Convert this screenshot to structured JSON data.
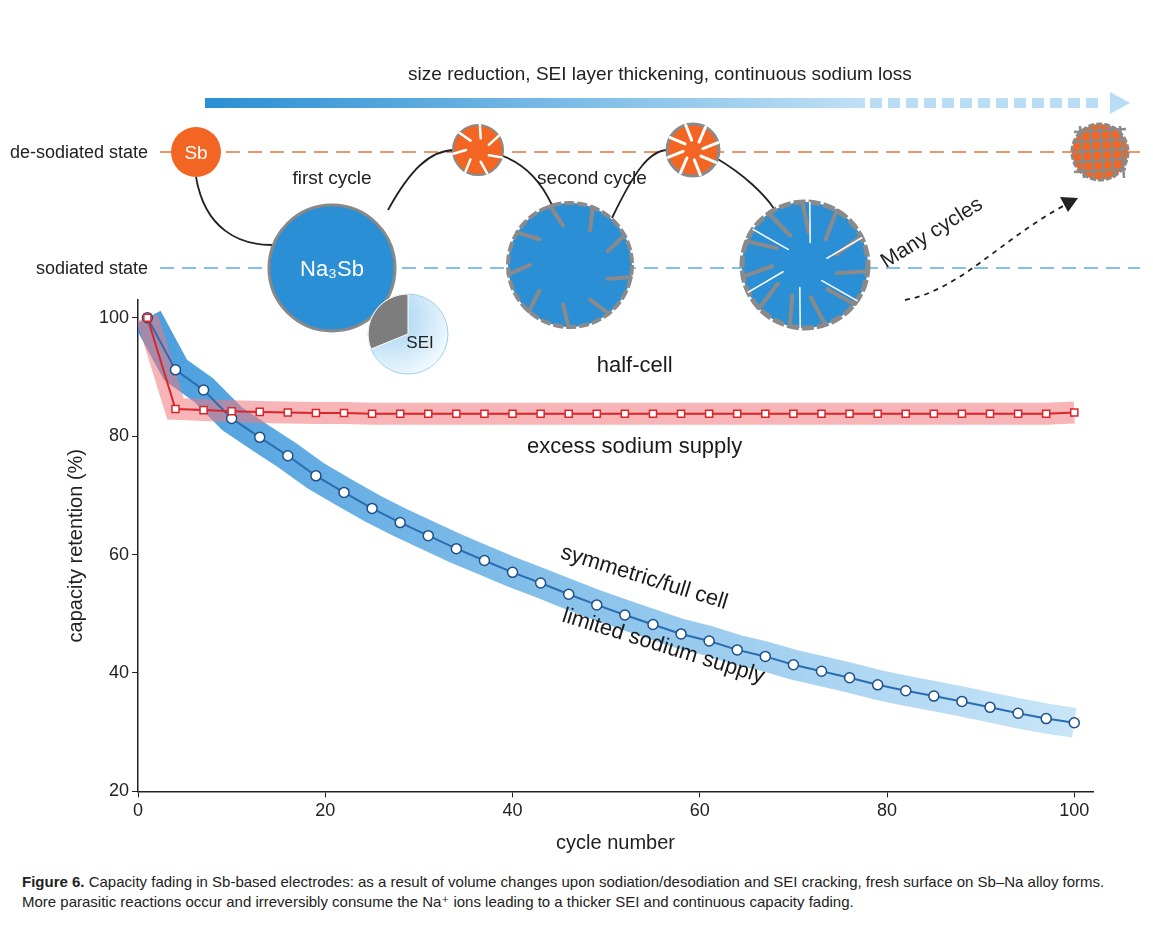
{
  "chart_data": {
    "type": "line",
    "x_label": "cycle number",
    "y_label": "capacity retention (%)",
    "x": [
      1,
      4,
      7,
      10,
      13,
      16,
      19,
      22,
      25,
      28,
      31,
      34,
      37,
      40,
      43,
      46,
      49,
      52,
      55,
      58,
      61,
      64,
      67,
      70,
      73,
      76,
      79,
      82,
      85,
      88,
      91,
      94,
      97,
      100
    ],
    "series": [
      {
        "name": "half-cell",
        "color": "#d9262b",
        "marker": "square",
        "values": [
          100,
          84.6,
          84.4,
          84.2,
          84.1,
          84.0,
          83.9,
          83.9,
          83.8,
          83.8,
          83.8,
          83.8,
          83.8,
          83.8,
          83.8,
          83.8,
          83.8,
          83.8,
          83.8,
          83.8,
          83.8,
          83.8,
          83.8,
          83.8,
          83.8,
          83.8,
          83.8,
          83.8,
          83.8,
          83.8,
          83.8,
          83.8,
          83.8,
          84.0
        ]
      },
      {
        "name": "symmetric/full cell",
        "color": "#2a6db3",
        "marker": "circle",
        "values": [
          100,
          91.2,
          87.8,
          83,
          79.8,
          76.7,
          73.3,
          70.5,
          67.8,
          65.4,
          63.2,
          61,
          59,
          57,
          55.2,
          53.3,
          51.5,
          49.8,
          48.2,
          46.6,
          45.4,
          43.9,
          42.8,
          41.4,
          40.3,
          39.2,
          38,
          37,
          36.1,
          35.2,
          34.2,
          33.2,
          32.3,
          31.6
        ]
      }
    ],
    "annotations": [
      "half-cell",
      "excess sodium supply",
      "symmetric/full cell",
      "limited sodium supply"
    ],
    "xlim": [
      0,
      102
    ],
    "xticks": [
      0,
      20,
      40,
      60,
      80,
      100
    ],
    "ylim": [
      20,
      103
    ],
    "yticks": [
      20,
      40,
      60,
      80,
      100
    ],
    "grid": false
  },
  "diagram": {
    "arrow_label": "size reduction, SEI layer thickening, continuous sodium loss",
    "states": [
      "de-sodiated state",
      "sodiated state"
    ],
    "particles": {
      "desodiated": "Sb",
      "sodiated": "Na₃Sb",
      "sei": "SEI"
    },
    "cycles": [
      "first cycle",
      "second cycle",
      "Many cycles"
    ]
  },
  "caption": {
    "label": "Figure 6.",
    "text": "Capacity fading in Sb-based electrodes: as a result of volume changes upon sodiation/desodiation and SEI cracking, fresh surface on Sb–Na alloy forms. More parasitic reactions occur and irreversibly consume the Na⁺ ions leading to a thicker SEI and continuous capacity fading."
  }
}
